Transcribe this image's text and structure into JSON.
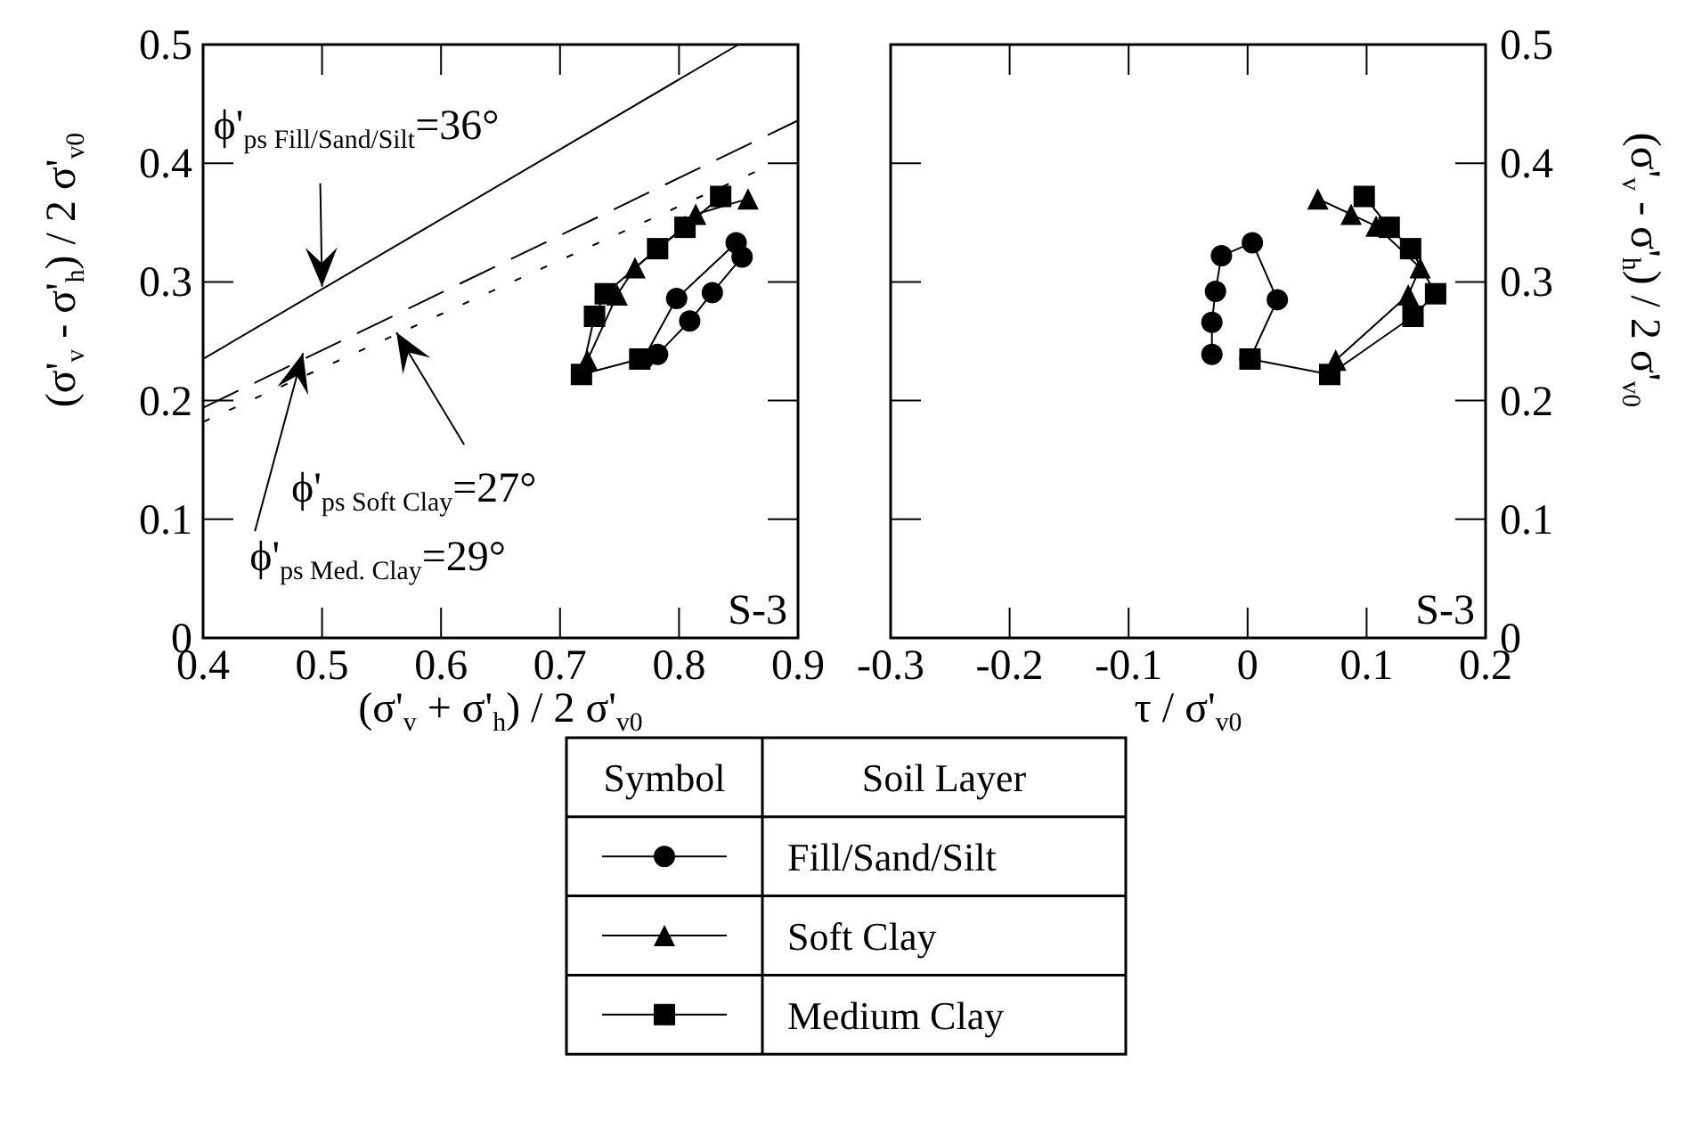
{
  "chart_data": [
    {
      "type": "scatter",
      "xlabel": "(σ'$_{v}$ + σ'$_{h}$) / 2 σ'$_{v0}$",
      "ylabel": "(σ'$_{v}$ - σ'$_{h}$) / 2 σ'$_{v0}$",
      "xlim": [
        0.4,
        0.9
      ],
      "xticks": [
        0.4,
        0.5,
        0.6,
        0.7,
        0.8,
        0.9
      ],
      "ylim": [
        0,
        0.5
      ],
      "yticks": [
        0,
        0.1,
        0.2,
        0.3,
        0.4,
        0.5
      ],
      "grid": false,
      "legend": "bottom",
      "legend_title": "Soil Layer",
      "series": [
        {
          "name": "Fill/Sand/Silt",
          "type": "line",
          "marker": "circle",
          "color": "#000000",
          "x": [
            0.77,
            0.798,
            0.848,
            0.853,
            0.828,
            0.809,
            0.782
          ],
          "values": [
            0.235,
            0.286,
            0.333,
            0.321,
            0.291,
            0.267,
            0.239
          ]
        },
        {
          "name": "Soft Clay",
          "type": "line",
          "marker": "triangle",
          "color": "#000000",
          "x": [
            0.723,
            0.748,
            0.763,
            0.805,
            0.814,
            0.858
          ],
          "values": [
            0.234,
            0.289,
            0.312,
            0.347,
            0.357,
            0.37
          ]
        },
        {
          "name": "Medium Clay",
          "type": "line",
          "marker": "square",
          "color": "#000000",
          "x": [
            0.767,
            0.718,
            0.729,
            0.738,
            0.782,
            0.805,
            0.835
          ],
          "values": [
            0.235,
            0.222,
            0.271,
            0.29,
            0.328,
            0.346,
            0.372
          ]
        },
        {
          "type": "line",
          "marker": "none",
          "line_style": "solid",
          "color": "#000000",
          "x": [
            0.4,
            0.85
          ],
          "values": [
            0.235,
            0.5
          ]
        },
        {
          "type": "line",
          "marker": "none",
          "line_style": "dotted",
          "color": "#000000",
          "x": [
            0.4,
            0.88
          ],
          "values": [
            0.182,
            0.4
          ]
        },
        {
          "type": "line",
          "marker": "none",
          "line_style": "dashed",
          "color": "#000000",
          "x": [
            0.4,
            0.9
          ],
          "values": [
            0.194,
            0.436
          ]
        }
      ],
      "annotations": [
        {
          "text": "ϕ'$_{ps Fill/Sand/Silt}$=36°",
          "x": 0.5,
          "y": 0.296
        },
        {
          "text": "ϕ'$_{ps Soft Clay}$=27°",
          "x": 0.5625,
          "y": 0.2575
        },
        {
          "text": "ϕ'$_{ps Med. Clay}$=29°",
          "x": 0.484,
          "y": 0.24
        },
        "S-3",
        "Symbol"
      ]
    },
    {
      "type": "scatter",
      "xlabel": "τ / σ'$_{v0}$",
      "ylabel": "(σ'$_{v}$ - σ'$_{h}$) / 2 σ'$_{v0}$",
      "xlim": [
        -0.3,
        0.2
      ],
      "xticks": [
        -0.3,
        -0.2,
        -0.1,
        0,
        0.1,
        0.2
      ],
      "ylim": [
        0,
        0.5
      ],
      "yticks": [
        0,
        0.1,
        0.2,
        0.3,
        0.4,
        0.5
      ],
      "grid": false,
      "series": [
        {
          "type": "line",
          "marker": "circle",
          "color": "#000000",
          "x": [
            0.002,
            0.025,
            0.004,
            -0.022,
            -0.027,
            -0.03,
            -0.03
          ],
          "values": [
            0.235,
            0.285,
            0.333,
            0.322,
            0.292,
            0.266,
            0.239
          ]
        },
        {
          "type": "line",
          "marker": "triangle",
          "color": "#000000",
          "x": [
            0.074,
            0.135,
            0.145,
            0.108,
            0.087,
            0.059
          ],
          "values": [
            0.234,
            0.289,
            0.312,
            0.347,
            0.357,
            0.37
          ]
        },
        {
          "type": "line",
          "marker": "square",
          "color": "#000000",
          "x": [
            0.002,
            0.069,
            0.139,
            0.158,
            0.137,
            0.119,
            0.098
          ],
          "values": [
            0.235,
            0.222,
            0.271,
            0.29,
            0.328,
            0.346,
            0.372
          ]
        }
      ],
      "annotations": [
        "S-3"
      ]
    }
  ]
}
